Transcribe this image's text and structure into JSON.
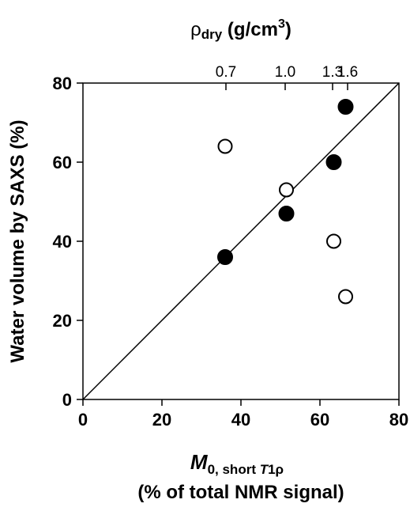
{
  "chart_data": {
    "type": "scatter",
    "title": "",
    "xlabel_main": "M",
    "xlabel_sub": "0, short ",
    "xlabel_sub_t": "T",
    "xlabel_sub_rest": "1ρ",
    "xlabel_line2": "(% of total NMR signal)",
    "ylabel": "Water volume by SAXS (%)",
    "top_label_main": "ρ",
    "top_label_sub": "dry",
    "top_label_unit": " (g/cm",
    "top_label_exp": "3",
    "top_label_close": ")",
    "xlim": [
      0,
      80
    ],
    "ylim": [
      0,
      80
    ],
    "x_ticks": [
      0,
      20,
      40,
      60,
      80
    ],
    "y_ticks": [
      0,
      20,
      40,
      60,
      80
    ],
    "x_tick_labels": [
      "0",
      "20",
      "40",
      "60",
      "80"
    ],
    "y_tick_labels": [
      "0",
      "20",
      "40",
      "60",
      "80"
    ],
    "top_ticks": [
      {
        "x": 36.2,
        "label": "0.7"
      },
      {
        "x": 51.2,
        "label": "1.0"
      },
      {
        "x": 63.2,
        "label": "1.3"
      },
      {
        "x": 67.0,
        "label": "1.6"
      }
    ],
    "identity_line": [
      [
        0,
        0
      ],
      [
        80,
        80
      ]
    ],
    "series": [
      {
        "marker": "filled",
        "points": [
          [
            36,
            36
          ],
          [
            51.5,
            47
          ],
          [
            63.5,
            60
          ],
          [
            66.5,
            74
          ]
        ]
      },
      {
        "marker": "open",
        "points": [
          [
            36,
            64
          ],
          [
            51.5,
            53
          ],
          [
            63.5,
            40
          ],
          [
            66.5,
            26
          ]
        ]
      }
    ]
  }
}
